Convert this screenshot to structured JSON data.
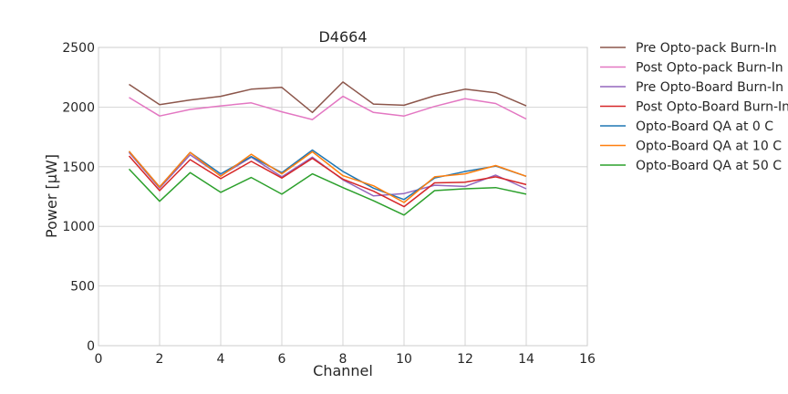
{
  "chart_data": {
    "type": "line",
    "title": "D4664",
    "xlabel": "Channel",
    "ylabel": "Power [µW]",
    "xlim": [
      0,
      16
    ],
    "ylim": [
      0,
      2500
    ],
    "xticks": [
      0,
      2,
      4,
      6,
      8,
      10,
      12,
      14,
      16
    ],
    "yticks": [
      0,
      500,
      1000,
      1500,
      2000,
      2500
    ],
    "grid": true,
    "legend_position": "outside-right-top",
    "x": [
      1,
      2,
      3,
      4,
      5,
      6,
      7,
      8,
      9,
      10,
      11,
      12,
      13,
      14
    ],
    "series": [
      {
        "name": "Pre Opto-pack Burn-In",
        "color": "#8c564b",
        "values": [
          2190,
          2020,
          2060,
          2090,
          2150,
          2165,
          1955,
          2210,
          2025,
          2015,
          2095,
          2150,
          2120,
          2010
        ]
      },
      {
        "name": "Post Opto-pack Burn-In",
        "color": "#e377c2",
        "values": [
          2080,
          1925,
          1980,
          2010,
          2035,
          1960,
          1895,
          2090,
          1955,
          1925,
          2005,
          2070,
          2030,
          1900
        ]
      },
      {
        "name": "Pre Opto-Board Burn-In",
        "color": "#9467bd",
        "values": [
          1620,
          1320,
          1600,
          1425,
          1580,
          1415,
          1580,
          1390,
          1255,
          1275,
          1345,
          1335,
          1430,
          1315
        ]
      },
      {
        "name": "Post Opto-Board Burn-In",
        "color": "#d62728",
        "values": [
          1590,
          1300,
          1560,
          1400,
          1545,
          1405,
          1570,
          1395,
          1295,
          1165,
          1365,
          1370,
          1415,
          1350
        ]
      },
      {
        "name": "Opto-Board QA at 0 C",
        "color": "#1f77b4",
        "values": [
          1630,
          1330,
          1620,
          1440,
          1585,
          1450,
          1640,
          1460,
          1320,
          1225,
          1405,
          1460,
          1505,
          1420
        ]
      },
      {
        "name": "Opto-Board QA at 10 C",
        "color": "#ff7f0e",
        "values": [
          1630,
          1330,
          1620,
          1420,
          1605,
          1440,
          1625,
          1425,
          1340,
          1200,
          1415,
          1440,
          1510,
          1420
        ]
      },
      {
        "name": "Opto-Board QA at 50 C",
        "color": "#2ca02c",
        "values": [
          1480,
          1210,
          1450,
          1285,
          1410,
          1270,
          1440,
          1325,
          1215,
          1095,
          1300,
          1315,
          1325,
          1270
        ]
      }
    ]
  }
}
